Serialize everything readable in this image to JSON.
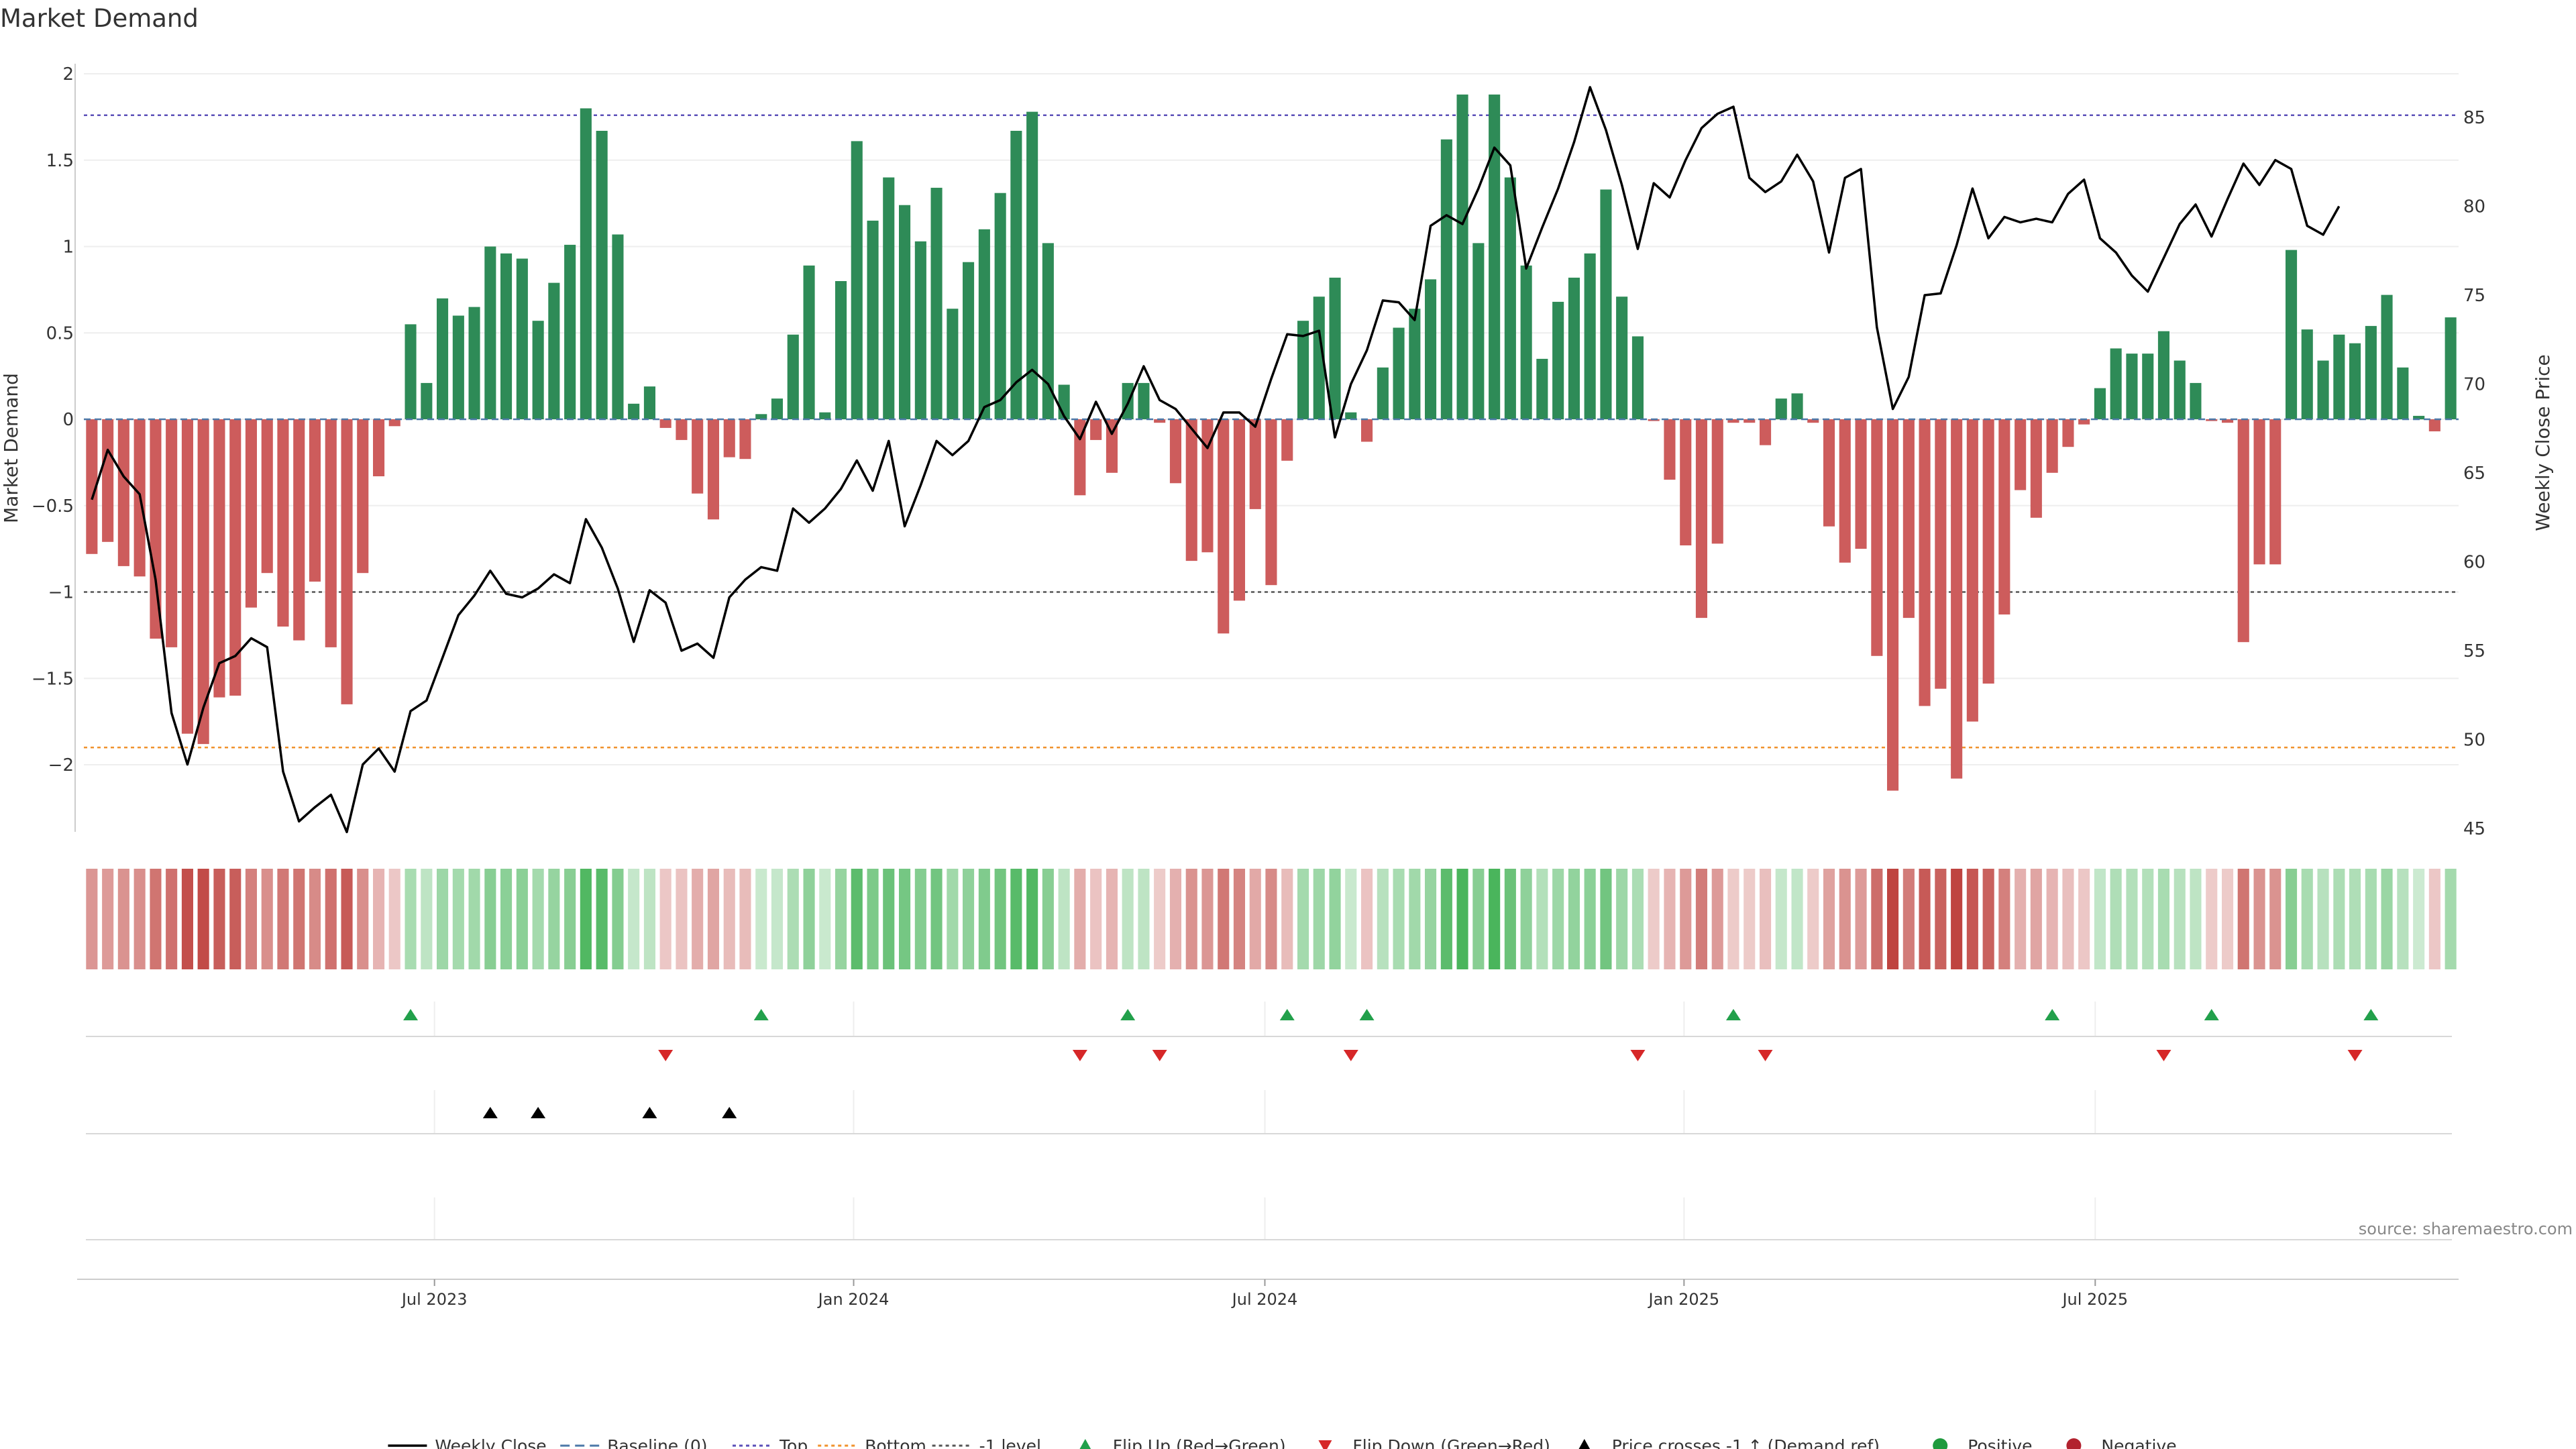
{
  "chart_data": {
    "type": "bar+line",
    "title": "Market Demand",
    "ylabel_left": "Market Demand",
    "ylabel_right": "Weekly Close Price",
    "left_ylim": [
      -2.4,
      2
    ],
    "left_ticks": [
      2,
      1.5,
      1,
      0.5,
      0,
      -0.5,
      -1,
      -1.5,
      -2
    ],
    "left_tick_labels": [
      "2",
      "1.5",
      "1",
      "0.5",
      "0",
      "−0.5",
      "−1",
      "−1.5",
      "−2"
    ],
    "right_ylim": [
      45,
      88
    ],
    "right_ticks": [
      45,
      50,
      55,
      60,
      65,
      70,
      75,
      80,
      85
    ],
    "right_tick_labels": [
      "45",
      "50",
      "55",
      "60",
      "65",
      "70",
      "75",
      "80",
      "85"
    ],
    "x_tick_labels": [
      "Jul 2023",
      "Jan 2024",
      "Jul 2024",
      "Jan 2025",
      "Jul 2025"
    ],
    "x_tick_weeks": [
      21.5,
      47.8,
      73.6,
      99.9,
      125.7
    ],
    "levels": {
      "top": 1.76,
      "bottom": -1.9,
      "minus_one": -1
    },
    "demand": [
      -0.78,
      -0.71,
      -0.85,
      -0.91,
      -1.27,
      -1.32,
      -1.82,
      -1.88,
      -1.61,
      -1.6,
      -1.09,
      -0.89,
      -1.2,
      -1.28,
      -0.94,
      -1.32,
      -1.65,
      -0.89,
      -0.33,
      -0.04,
      0.55,
      0.21,
      0.7,
      0.6,
      0.65,
      1.0,
      0.96,
      0.93,
      0.57,
      0.79,
      1.01,
      1.8,
      1.67,
      1.07,
      0.09,
      0.19,
      -0.05,
      -0.12,
      -0.43,
      -0.58,
      -0.22,
      -0.23,
      0.03,
      0.12,
      0.49,
      0.89,
      0.04,
      0.8,
      1.61,
      1.15,
      1.4,
      1.24,
      1.03,
      1.34,
      0.64,
      0.91,
      1.1,
      1.31,
      1.67,
      1.78,
      1.02,
      0.2,
      -0.44,
      -0.12,
      -0.31,
      0.21,
      0.21,
      -0.02,
      -0.37,
      -0.82,
      -0.77,
      -1.24,
      -1.05,
      -0.52,
      -0.96,
      -0.24,
      0.57,
      0.71,
      0.82,
      0.04,
      -0.13,
      0.3,
      0.53,
      0.64,
      0.81,
      1.62,
      1.88,
      1.02,
      1.88,
      1.4,
      0.89,
      0.35,
      0.68,
      0.82,
      0.96,
      1.33,
      0.71,
      0.48,
      -0.01,
      -0.35,
      -0.73,
      -1.15,
      -0.72,
      -0.02,
      -0.02,
      -0.15,
      0.12,
      0.15,
      -0.02,
      -0.62,
      -0.83,
      -0.75,
      -1.37,
      -2.15,
      -1.15,
      -1.66,
      -1.56,
      -2.08,
      -1.75,
      -1.53,
      -1.13,
      -0.41,
      -0.57,
      -0.31,
      -0.16,
      -0.03,
      0.18,
      0.41,
      0.38,
      0.38,
      0.51,
      0.34,
      0.21,
      -0.01,
      -0.02,
      -1.29,
      -0.84,
      -0.84,
      0.98,
      0.52,
      0.34,
      0.49,
      0.44,
      0.54,
      0.72,
      0.3,
      0.02,
      -0.07,
      0.59
    ],
    "weekly_close": [
      63.5,
      66.3,
      64.8,
      63.8,
      59.0,
      51.5,
      48.6,
      51.8,
      54.3,
      54.7,
      55.7,
      55.2,
      48.2,
      45.4,
      46.2,
      46.9,
      44.8,
      48.6,
      49.5,
      48.2,
      51.6,
      52.2,
      54.6,
      57.0,
      58.1,
      59.5,
      58.2,
      58.0,
      58.5,
      59.3,
      58.8,
      62.4,
      60.8,
      58.5,
      55.5,
      58.4,
      57.7,
      55.0,
      55.4,
      54.6,
      58.0,
      59.0,
      59.7,
      59.5,
      63.0,
      62.2,
      63.0,
      64.1,
      65.7,
      64.0,
      66.8,
      62.0,
      64.3,
      66.8,
      66.0,
      66.8,
      68.7,
      69.1,
      70.1,
      70.8,
      70.0,
      68.2,
      66.9,
      69.0,
      67.2,
      68.9,
      71.0,
      69.1,
      68.6,
      67.5,
      66.4,
      68.4,
      68.4,
      67.6,
      70.3,
      72.8,
      72.7,
      73.0,
      67.0,
      70.0,
      71.9,
      74.7,
      74.6,
      73.6,
      78.9,
      79.5,
      79.0,
      81.0,
      83.3,
      82.3,
      76.5,
      78.8,
      81.0,
      83.6,
      86.7,
      84.3,
      81.2,
      77.6,
      81.3,
      80.5,
      82.6,
      84.4,
      85.2,
      85.6,
      81.6,
      80.8,
      81.4,
      82.9,
      81.4,
      77.4,
      81.6,
      82.1,
      73.2,
      68.6,
      70.4,
      75.0,
      75.1,
      77.8,
      81.0,
      78.2,
      79.4,
      79.1,
      79.3,
      79.1,
      80.7,
      81.5,
      78.2,
      77.4,
      76.1,
      75.2,
      77.1,
      79.0,
      80.1,
      78.3,
      80.4,
      82.4,
      81.2,
      82.6,
      82.1,
      78.9,
      78.4,
      80.0
    ],
    "heat_strip": {
      "description": "per-week demand color band",
      "scheme": "green for positive, red for negative, saturation by magnitude"
    },
    "flip_up_weeks": [
      20,
      42,
      65,
      75,
      80,
      103,
      123,
      133,
      143
    ],
    "flip_down_weeks": [
      36,
      62,
      67,
      79,
      97,
      105,
      130,
      142
    ],
    "price_cross_weeks": [
      25,
      28,
      35,
      40
    ],
    "legend": [
      {
        "label": "Weekly Close",
        "kind": "line-solid",
        "color": "#000000"
      },
      {
        "label": "Baseline (0)",
        "kind": "line-dash",
        "color": "#4c78a8"
      },
      {
        "label": "Top",
        "kind": "line-dot",
        "color": "#5b4fb8"
      },
      {
        "label": "Bottom",
        "kind": "line-dot",
        "color": "#f0922c"
      },
      {
        "label": "-1 level",
        "kind": "line-dot",
        "color": "#555555"
      },
      {
        "label": "Flip Up (Red→Green)",
        "kind": "tri-up",
        "color": "#22a04b"
      },
      {
        "label": "Flip Down (Green→Red)",
        "kind": "tri-down",
        "color": "#d62728"
      },
      {
        "label": "Price crosses -1 ↑ (Demand ref)",
        "kind": "tri-up",
        "color": "#000000"
      },
      {
        "label": "Positive",
        "kind": "dot",
        "color": "#1f9a3e"
      },
      {
        "label": "Negative",
        "kind": "dot",
        "color": "#b2222f"
      }
    ]
  },
  "colors": {
    "positive_bar": "#2e8b57",
    "negative_bar": "#cd5c5c",
    "line": "#000000",
    "top_line": "#5b4fb8",
    "bottom_line": "#f0922c",
    "minus_one_line": "#555555",
    "baseline": "#4c78a8",
    "flip_up": "#22a04b",
    "flip_down": "#d62728"
  },
  "source": "source: sharemaestro.com"
}
